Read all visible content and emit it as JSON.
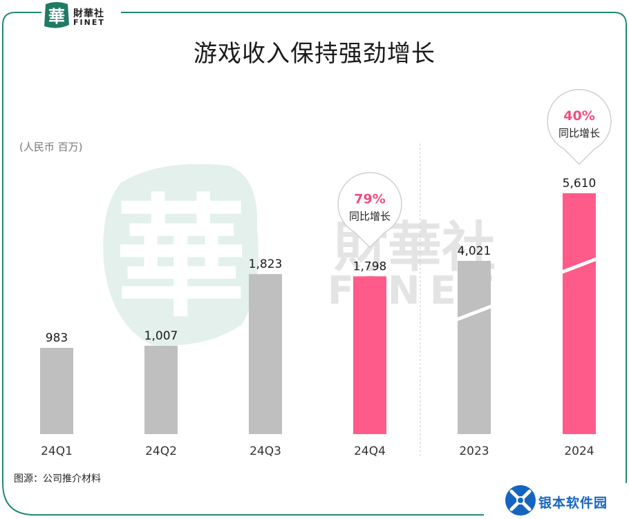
{
  "brand": {
    "logo_char": "華",
    "name_cn": "財華社",
    "name_en": "FINET"
  },
  "watermark": {
    "char": "華",
    "name_cn": "財華社",
    "name_en": "FINET"
  },
  "colors": {
    "frame": "#1f8a70",
    "gray_bar": "#bfbfbf",
    "highlight_bar": "#ff5b8a",
    "growth_text": "#f04e7f",
    "brand_green": "#1f7a66"
  },
  "chart_data": {
    "type": "bar",
    "title": "游戏收入保持强劲增长",
    "unit_label": "(人民币 百万)",
    "groups": [
      {
        "name": "quarterly",
        "categories": [
          "24Q1",
          "24Q2",
          "24Q3",
          "24Q4"
        ],
        "values": [
          983,
          1007,
          1823,
          1798
        ],
        "highlight": [
          false,
          false,
          false,
          true
        ]
      },
      {
        "name": "annual",
        "categories": [
          "2023",
          "2024"
        ],
        "values": [
          4021,
          5610
        ],
        "highlight": [
          false,
          true
        ],
        "axis_break": true
      }
    ],
    "value_labels": [
      "983",
      "1,007",
      "1,823",
      "1,798",
      "4,021",
      "5,610"
    ],
    "annotations": [
      {
        "target": "24Q4",
        "value": "79%",
        "label": "同比增长"
      },
      {
        "target": "2024",
        "value": "40%",
        "label": "同比增长"
      }
    ]
  },
  "source": "图源：公司推介材料",
  "corner_logo": {
    "text": "银本软件园",
    "color": "#1565c0"
  }
}
